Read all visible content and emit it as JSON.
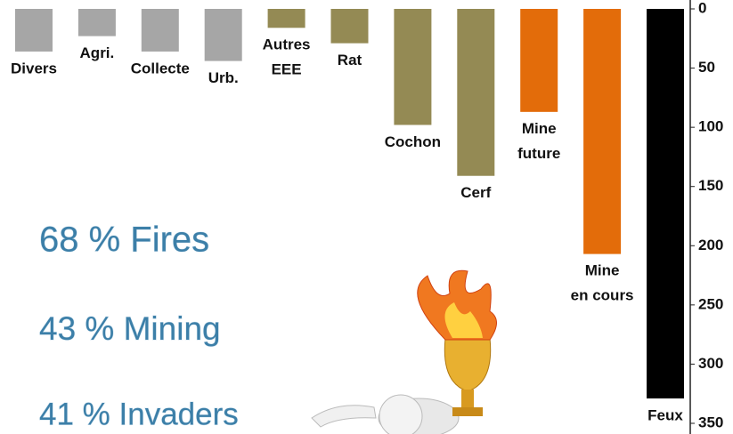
{
  "chart_data": {
    "type": "bar",
    "categories": [
      "Divers",
      "Agri.",
      "Collecte",
      "Urb.",
      "Autres\nEEE",
      "Rat",
      "Cochon",
      "Cerf",
      "Mine\nfuture",
      "Mine\nen cours",
      "Feux"
    ],
    "values": [
      36,
      23,
      36,
      44,
      16,
      29,
      98,
      141,
      87,
      207,
      329
    ],
    "colors": [
      "#a6a6a6",
      "#a6a6a6",
      "#a6a6a6",
      "#a6a6a6",
      "#948a54",
      "#948a54",
      "#948a54",
      "#948a54",
      "#e36c0a",
      "#e36c0a",
      "#000000"
    ],
    "ylim": [
      0,
      350
    ],
    "yticks": [
      0,
      50,
      100,
      150,
      200,
      250,
      300,
      350
    ],
    "y_inverted": true,
    "axis_side": "right",
    "annotations": [
      "68 % Fires",
      "43 % Mining",
      "41 % Invaders"
    ]
  }
}
